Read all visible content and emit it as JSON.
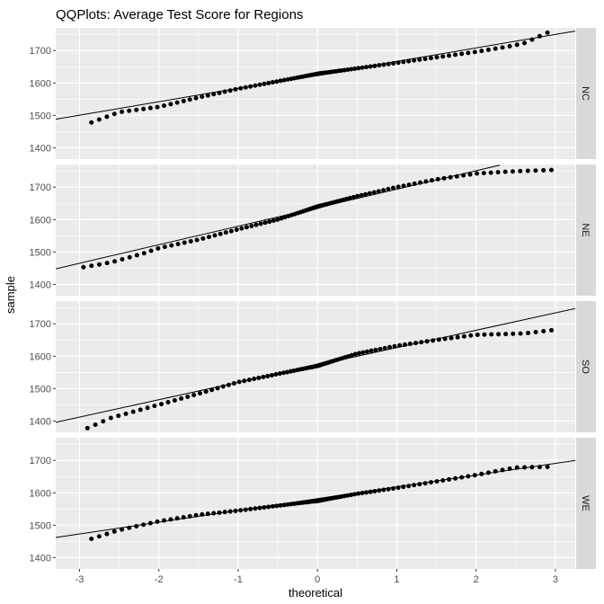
{
  "chart_data": {
    "type": "scatter",
    "title": "QQPlots: Average Test Score for Regions",
    "xlabel": "theoretical",
    "ylabel": "sample",
    "xlim": [
      -3.3,
      3.25
    ],
    "ylim": [
      1365,
      1770
    ],
    "x_ticks": [
      -3,
      -2,
      -1,
      0,
      1,
      2,
      3
    ],
    "x_tick_labels": [
      "-3",
      "-2",
      "-1",
      "0",
      "1",
      "2",
      "3"
    ],
    "y_ticks": [
      1400,
      1500,
      1600,
      1700
    ],
    "y_tick_labels": [
      "1400",
      "1500",
      "1600",
      "1700"
    ],
    "grid": true,
    "colors": {
      "panel_bg": "#EBEBEB",
      "strip_bg": "#D9D9D9",
      "grid": "#FFFFFF",
      "point": "#000000",
      "line": "#000000"
    },
    "panels": [
      {
        "label": "NC",
        "ref_line": {
          "x": [
            -3.3,
            3.25
          ],
          "y": [
            1488,
            1760
          ]
        },
        "knots": [
          [
            -2.85,
            1478
          ],
          [
            -2.5,
            1510
          ],
          [
            -2.0,
            1526
          ],
          [
            -1.5,
            1555
          ],
          [
            -1.0,
            1582
          ],
          [
            -0.5,
            1605
          ],
          [
            0.0,
            1628
          ],
          [
            0.5,
            1645
          ],
          [
            1.0,
            1662
          ],
          [
            1.5,
            1679
          ],
          [
            2.0,
            1696
          ],
          [
            2.4,
            1712
          ],
          [
            2.6,
            1722
          ],
          [
            2.9,
            1755
          ]
        ]
      },
      {
        "label": "NE",
        "ref_line": {
          "x": [
            -3.3,
            2.3
          ],
          "y": [
            1448,
            1768
          ]
        },
        "knots": [
          [
            -2.95,
            1453
          ],
          [
            -2.6,
            1468
          ],
          [
            -2.2,
            1495
          ],
          [
            -2.0,
            1512
          ],
          [
            -1.5,
            1538
          ],
          [
            -1.0,
            1570
          ],
          [
            -0.5,
            1600
          ],
          [
            0.0,
            1640
          ],
          [
            0.5,
            1672
          ],
          [
            1.0,
            1700
          ],
          [
            1.5,
            1724
          ],
          [
            2.0,
            1742
          ],
          [
            2.4,
            1748
          ],
          [
            2.6,
            1750
          ],
          [
            2.95,
            1753
          ]
        ]
      },
      {
        "label": "SO",
        "ref_line": {
          "x": [
            -3.3,
            3.25
          ],
          "y": [
            1396,
            1747
          ]
        },
        "knots": [
          [
            -2.9,
            1378
          ],
          [
            -2.6,
            1410
          ],
          [
            -2.0,
            1450
          ],
          [
            -1.5,
            1484
          ],
          [
            -1.0,
            1520
          ],
          [
            -0.5,
            1545
          ],
          [
            0.0,
            1570
          ],
          [
            0.5,
            1608
          ],
          [
            1.0,
            1632
          ],
          [
            1.5,
            1650
          ],
          [
            2.0,
            1666
          ],
          [
            2.6,
            1670
          ],
          [
            2.95,
            1680
          ]
        ]
      },
      {
        "label": "WE",
        "ref_line": {
          "x": [
            -3.3,
            3.25
          ],
          "y": [
            1462,
            1700
          ]
        },
        "knots": [
          [
            -2.85,
            1458
          ],
          [
            -2.5,
            1485
          ],
          [
            -2.0,
            1512
          ],
          [
            -1.5,
            1532
          ],
          [
            -1.0,
            1545
          ],
          [
            -0.5,
            1560
          ],
          [
            0.0,
            1575
          ],
          [
            0.5,
            1597
          ],
          [
            1.0,
            1615
          ],
          [
            1.5,
            1635
          ],
          [
            2.0,
            1655
          ],
          [
            2.5,
            1678
          ],
          [
            2.9,
            1680
          ]
        ]
      }
    ],
    "n_points_per_panel": 100
  }
}
